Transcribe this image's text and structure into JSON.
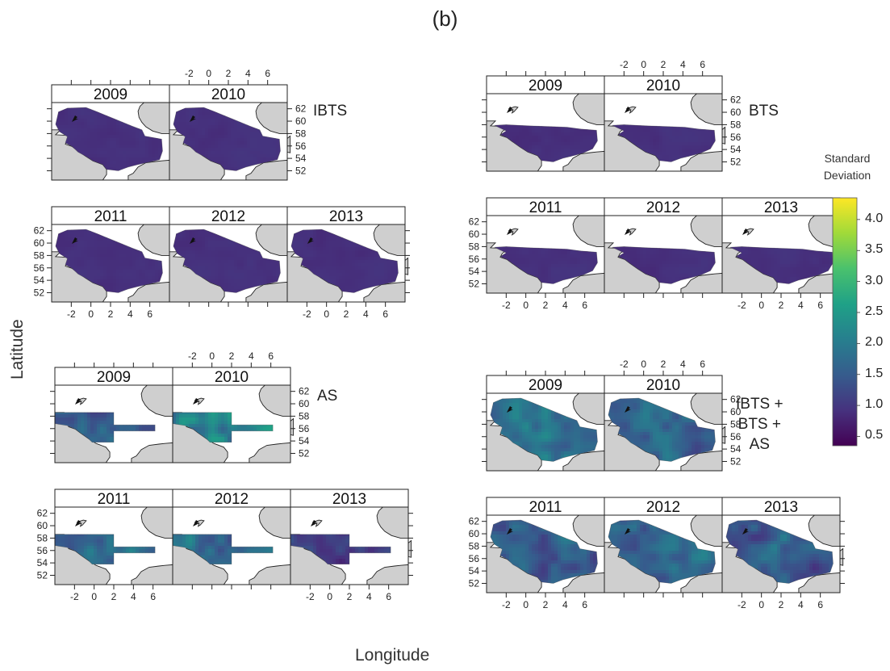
{
  "figure": {
    "panel_label": "(b)",
    "xlabel": "Longitude",
    "ylabel": "Latitude"
  },
  "chart_data": {
    "type": "heatmap",
    "colorbar": {
      "title_line1": "Standard",
      "title_line2": "Deviation",
      "ticks": [
        "4.0",
        "3.5",
        "3.0",
        "2.5",
        "2.0",
        "1.5",
        "1.0",
        "0.5"
      ],
      "tick_values": [
        4.0,
        3.5,
        3.0,
        2.5,
        2.0,
        1.5,
        1.0,
        0.5
      ],
      "range": [
        0.35,
        4.35
      ],
      "colormap": [
        "#440154",
        "#46327e",
        "#365c8d",
        "#277f8e",
        "#1fa187",
        "#4ac16d",
        "#a0da39",
        "#fde725"
      ]
    },
    "x_ticks": [
      "-2",
      "0",
      "2",
      "4",
      "6"
    ],
    "y_ticks": [
      "52",
      "54",
      "56",
      "58",
      "60",
      "62"
    ],
    "groups": [
      {
        "survey": "IBTS",
        "label_lines": [
          "IBTS"
        ],
        "domain": "full",
        "years": [
          "2009",
          "2010",
          "2011",
          "2012",
          "2013"
        ],
        "mean_sd": [
          0.9,
          0.9,
          0.9,
          0.9,
          0.9
        ],
        "variability": [
          0.06,
          0.06,
          0.06,
          0.06,
          0.06
        ]
      },
      {
        "survey": "BTS",
        "label_lines": [
          "BTS"
        ],
        "domain": "south",
        "years": [
          "2009",
          "2010",
          "2011",
          "2012",
          "2013"
        ],
        "mean_sd": [
          0.9,
          0.9,
          0.9,
          0.9,
          0.9
        ],
        "variability": [
          0.06,
          0.06,
          0.06,
          0.06,
          0.06
        ]
      },
      {
        "survey": "AS",
        "label_lines": [
          "AS"
        ],
        "domain": "acoustic",
        "years": [
          "2009",
          "2010",
          "2011",
          "2012",
          "2013"
        ],
        "mean_sd": [
          1.4,
          2.1,
          1.7,
          1.7,
          1.1
        ],
        "variability": [
          0.4,
          0.7,
          0.5,
          0.5,
          0.35
        ]
      },
      {
        "survey": "IBTS + BTS + AS",
        "label_lines": [
          "IBTS +",
          "BTS +",
          "AS"
        ],
        "domain": "full",
        "years": [
          "2009",
          "2010",
          "2011",
          "2012",
          "2013"
        ],
        "mean_sd": [
          1.75,
          1.6,
          1.6,
          1.65,
          1.5
        ],
        "variability": [
          0.45,
          0.45,
          0.45,
          0.45,
          0.5
        ]
      }
    ]
  }
}
